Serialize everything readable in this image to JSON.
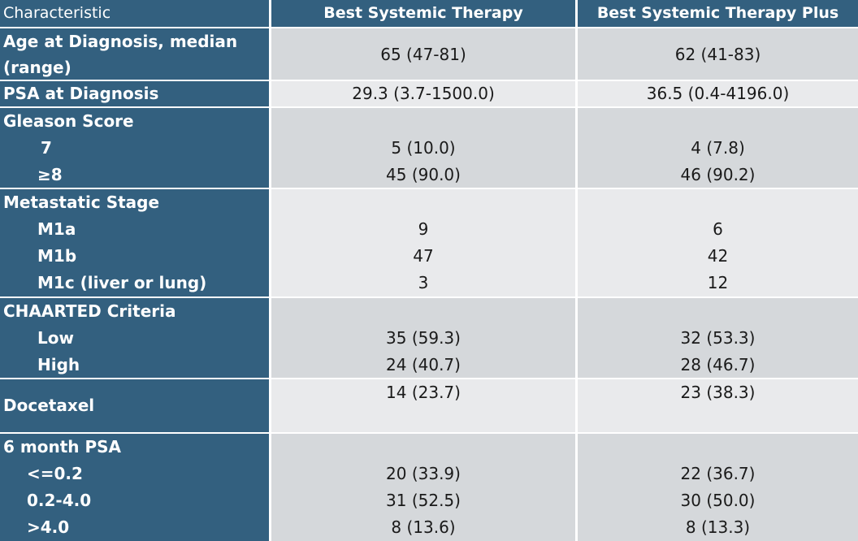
{
  "header": {
    "col1": "Characteristic",
    "col2": "Best Systemic Therapy",
    "col3": "Best Systemic Therapy Plus"
  },
  "age": {
    "label_line1": "Age at Diagnosis, median",
    "label_line2": "(range)",
    "bst": "65 (47-81)",
    "bst_plus": "62 (41-83)"
  },
  "psa": {
    "label": "PSA at Diagnosis",
    "bst": "29.3 (3.7-1500.0)",
    "bst_plus": "36.5 (0.4-4196.0)"
  },
  "gleason": {
    "label": "Gleason Score",
    "rows": [
      {
        "label": "7",
        "bst": "5 (10.0)",
        "bst_plus": "4 (7.8)"
      },
      {
        "label": "≥8",
        "bst": "45 (90.0)",
        "bst_plus": "46 (90.2)"
      }
    ]
  },
  "metastatic": {
    "label": "Metastatic Stage",
    "rows": [
      {
        "label": "M1a",
        "bst": "9",
        "bst_plus": "6"
      },
      {
        "label": "M1b",
        "bst": "47",
        "bst_plus": "42"
      },
      {
        "label": "M1c (liver or lung)",
        "bst": "3",
        "bst_plus": "12"
      }
    ]
  },
  "chaarted": {
    "label": "CHAARTED Criteria",
    "rows": [
      {
        "label": "Low",
        "bst": "35 (59.3)",
        "bst_plus": "32 (53.3)"
      },
      {
        "label": "High",
        "bst": "24 (40.7)",
        "bst_plus": "28 (46.7)"
      }
    ]
  },
  "docetaxel": {
    "label": "Docetaxel",
    "bst": "14 (23.7)",
    "bst_plus": "23 (38.3)"
  },
  "psa6": {
    "label": "6 month PSA",
    "rows": [
      {
        "label": "<=0.2",
        "bst": "20 (33.9)",
        "bst_plus": "22 (36.7)"
      },
      {
        "label": "0.2-4.0",
        "bst": "31 (52.5)",
        "bst_plus": "30 (50.0)"
      },
      {
        "label": ">4.0",
        "bst": "8 (13.6)",
        "bst_plus": "8 (13.3)"
      }
    ]
  }
}
